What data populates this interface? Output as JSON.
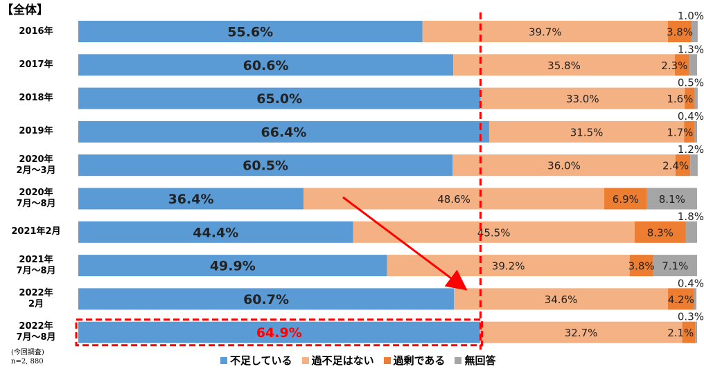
{
  "header": "【全体】",
  "note": {
    "line1": "(今回調査)",
    "line2": "n=2, 880"
  },
  "chart_data": {
    "type": "bar",
    "orientation": "horizontal",
    "stacked": true,
    "percent_stacked": true,
    "categories": [
      [
        "2016年"
      ],
      [
        "2017年"
      ],
      [
        "2018年"
      ],
      [
        "2019年"
      ],
      [
        "2020年",
        "2月～3月"
      ],
      [
        "2020年",
        "7月～8月"
      ],
      [
        "2021年2月"
      ],
      [
        "2021年",
        "7月～8月"
      ],
      [
        "2022年",
        "2月"
      ],
      [
        "2022年",
        "7月～8月"
      ]
    ],
    "series": [
      {
        "name": "不足している",
        "color": "#5b9bd5",
        "values": [
          55.6,
          60.6,
          65.0,
          66.4,
          60.5,
          36.4,
          44.4,
          49.9,
          60.7,
          64.9
        ]
      },
      {
        "name": "過不足はない",
        "color": "#f4b183",
        "values": [
          39.7,
          35.8,
          33.0,
          31.5,
          36.0,
          48.6,
          45.5,
          39.2,
          34.6,
          32.7
        ]
      },
      {
        "name": "過剰である",
        "color": "#ed7d31",
        "values": [
          3.8,
          2.3,
          1.6,
          1.7,
          2.4,
          6.9,
          8.3,
          3.8,
          4.2,
          2.1
        ]
      },
      {
        "name": "無回答",
        "color": "#a5a5a5",
        "values": [
          1.0,
          1.3,
          0.5,
          0.4,
          1.2,
          8.1,
          1.8,
          7.1,
          0.4,
          0.3
        ]
      }
    ],
    "xlim": [
      0,
      100
    ],
    "grid": false,
    "legend_position": "bottom",
    "reference_line": {
      "value": 65.0,
      "style": "dashed",
      "color": "#ff0000"
    },
    "highlighted_category_index": 9,
    "highlight_color": "#ff0000",
    "arrow": {
      "from_category_index": 5,
      "to_category_index": 8,
      "color": "#ff0000"
    }
  }
}
